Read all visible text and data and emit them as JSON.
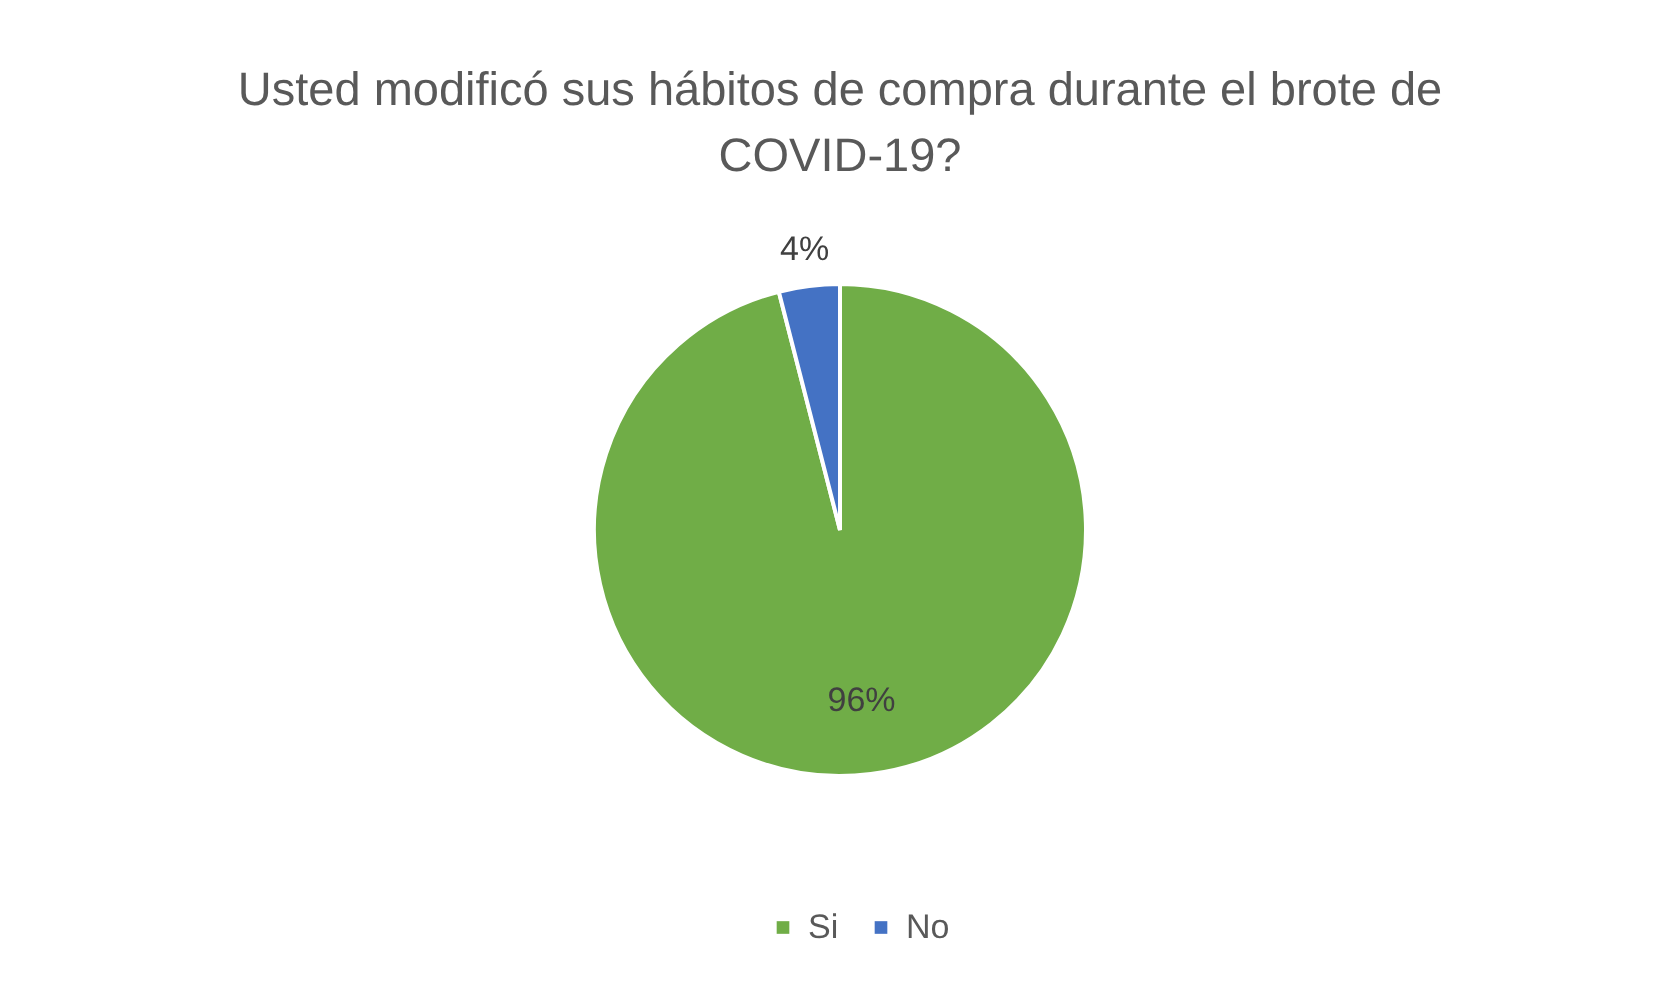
{
  "chart_data": {
    "type": "pie",
    "title": "Usted modificó sus hábitos de compra durante el brote de COVID-19?",
    "categories": [
      "Si",
      "No"
    ],
    "values": [
      96,
      4
    ],
    "colors": [
      "#70ad47",
      "#4472c4"
    ],
    "value_labels": [
      "96%",
      "4%"
    ],
    "legend": "bottom"
  }
}
